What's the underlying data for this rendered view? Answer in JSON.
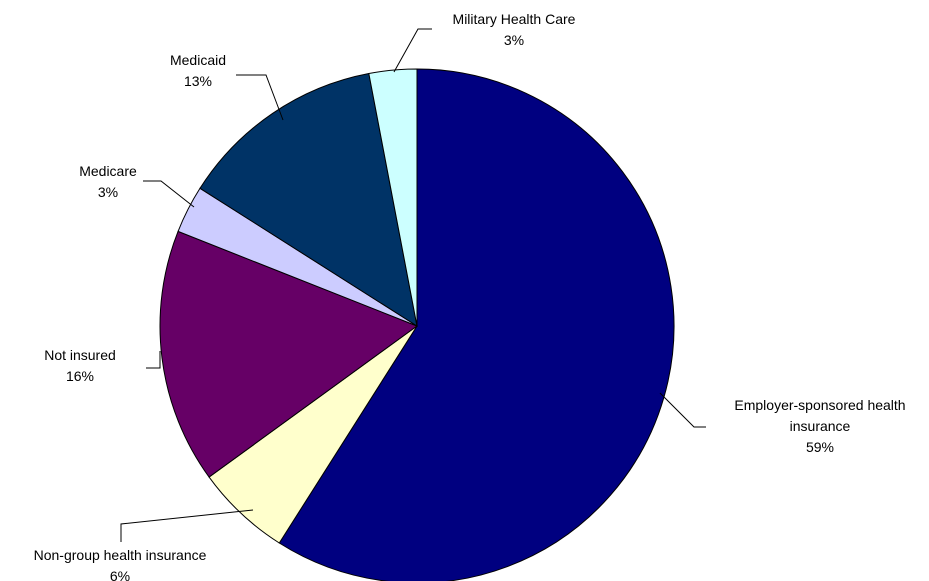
{
  "chart_data": {
    "type": "pie",
    "title": "",
    "slices": [
      {
        "name": "Employer-sponsored health insurance",
        "label_lines": [
          "Employer-sponsored health",
          "insurance"
        ],
        "value": 59,
        "pct_label": "59%",
        "color": "#000080"
      },
      {
        "name": "Non-group health insurance",
        "label_lines": [
          "Non-group health insurance"
        ],
        "value": 6,
        "pct_label": "6%",
        "color": "#ffffcc"
      },
      {
        "name": "Not insured",
        "label_lines": [
          "Not insured"
        ],
        "value": 16,
        "pct_label": "16%",
        "color": "#660066"
      },
      {
        "name": "Medicare",
        "label_lines": [
          "Medicare"
        ],
        "value": 3,
        "pct_label": "3%",
        "color": "#ccccff"
      },
      {
        "name": "Medicaid",
        "label_lines": [
          "Medicaid"
        ],
        "value": 13,
        "pct_label": "13%",
        "color": "#003366"
      },
      {
        "name": "Military Health Care",
        "label_lines": [
          "Military Health Care"
        ],
        "value": 3,
        "pct_label": "3%",
        "color": "#ccffff"
      }
    ],
    "start_angle_deg": 0,
    "direction": "clockwise",
    "legend": "none"
  }
}
